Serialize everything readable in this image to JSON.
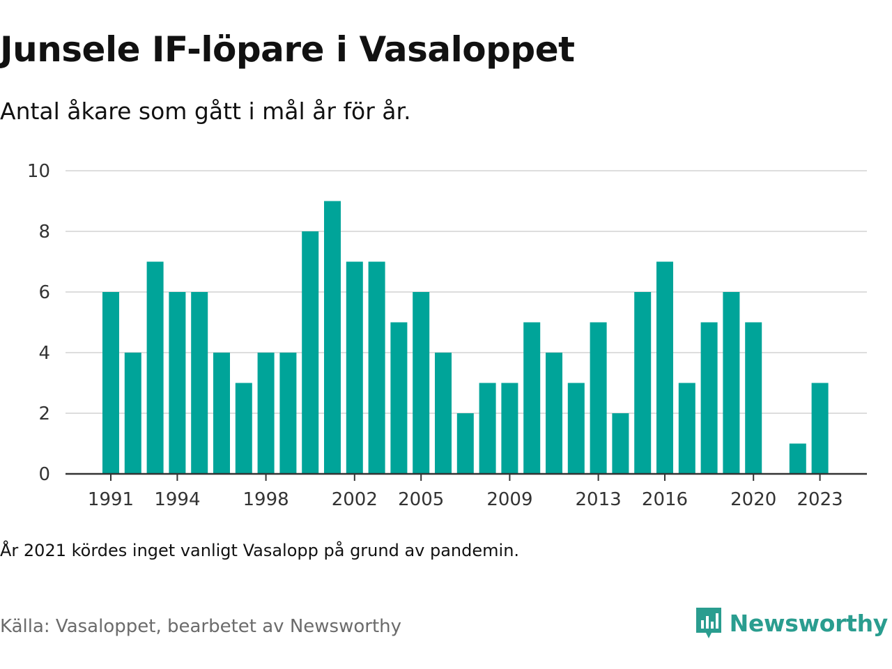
{
  "title": "Junsele IF-löpare i Vasaloppet",
  "subtitle": "Antal åkare som gått i mål år för år.",
  "note": "År 2021 kördes inget vanligt Vasalopp på grund av pandemin.",
  "source": "Källa: Vasaloppet, bearbetet av Newsworthy",
  "brand": {
    "name": "Newsworthy",
    "logo_icon": "newsworthy-logo-icon"
  },
  "colors": {
    "bar": "#00a499",
    "grid": "#dddddd",
    "axis": "#333333",
    "brand": "#2a9d8f"
  },
  "chart_data": {
    "type": "bar",
    "title": "Junsele IF-löpare i Vasaloppet",
    "subtitle": "Antal åkare som gått i mål år för år.",
    "xlabel": "",
    "ylabel": "",
    "ylim": [
      0,
      10
    ],
    "yticks": [
      "0",
      "2",
      "4",
      "6",
      "8",
      "10"
    ],
    "xticks": [
      "1991",
      "1994",
      "1998",
      "2002",
      "2005",
      "2009",
      "2013",
      "2016",
      "2020",
      "2023"
    ],
    "grid": true,
    "categories": [
      "1991",
      "1992",
      "1993",
      "1994",
      "1995",
      "1996",
      "1997",
      "1998",
      "1999",
      "2000",
      "2001",
      "2002",
      "2003",
      "2004",
      "2005",
      "2006",
      "2007",
      "2008",
      "2009",
      "2010",
      "2011",
      "2012",
      "2013",
      "2014",
      "2015",
      "2016",
      "2017",
      "2018",
      "2019",
      "2020",
      "2021",
      "2022",
      "2023"
    ],
    "values": [
      6,
      4,
      7,
      6,
      6,
      4,
      3,
      4,
      4,
      8,
      9,
      7,
      7,
      5,
      6,
      4,
      2,
      3,
      3,
      5,
      4,
      3,
      5,
      2,
      6,
      7,
      3,
      5,
      6,
      5,
      null,
      1,
      3
    ]
  }
}
